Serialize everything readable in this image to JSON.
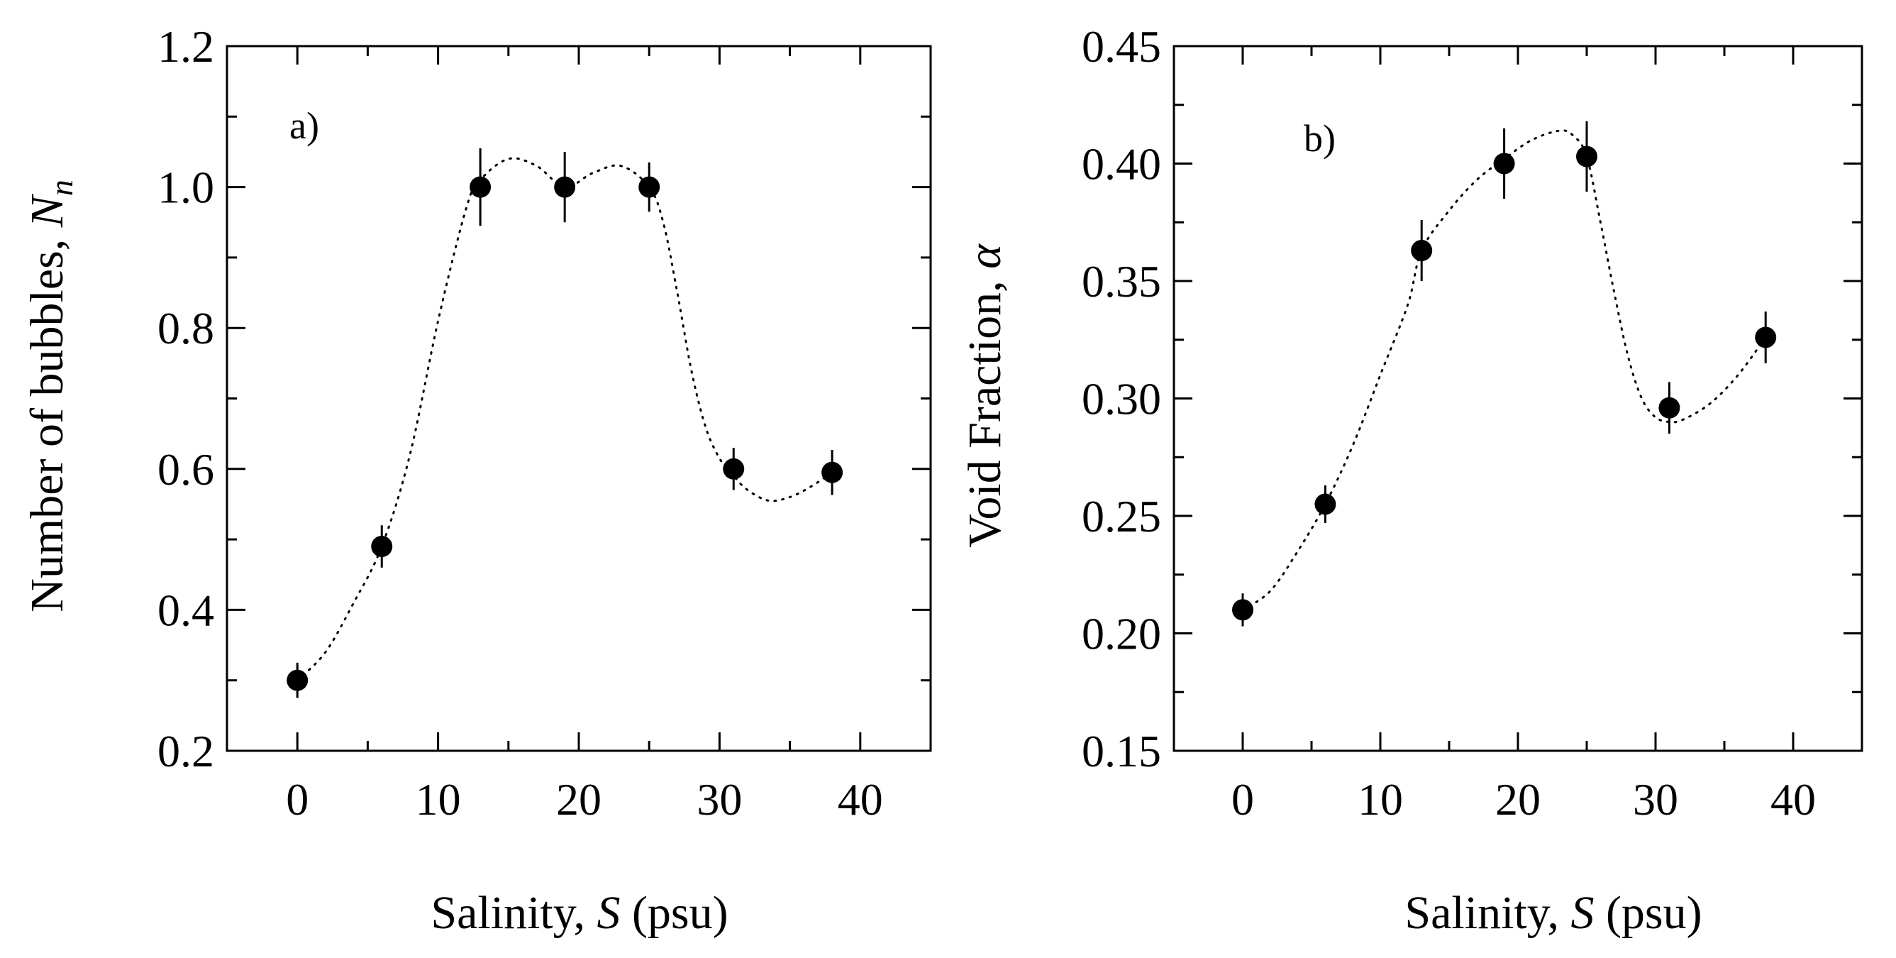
{
  "chart_data": [
    {
      "type": "scatter",
      "panel_label": "a)",
      "xlabel": {
        "prefix": "Salinity, ",
        "var": "S",
        "suffix": " (psu)"
      },
      "ylabel": {
        "prefix": "Number of bubbles, ",
        "var": "N",
        "sub": "n"
      },
      "xlim": [
        -5,
        45
      ],
      "ylim": [
        0.2,
        1.2
      ],
      "xticks": [
        0,
        10,
        20,
        30,
        40
      ],
      "xtick_labels": [
        "0",
        "10",
        "20",
        "30",
        "40"
      ],
      "yticks": [
        0.2,
        0.4,
        0.6,
        0.8,
        1.0,
        1.2
      ],
      "ytick_labels": [
        "0.2",
        "0.4",
        "0.6",
        "0.8",
        "1.0",
        "1.2"
      ],
      "x_minor_step": 5,
      "y_minor_step": 0.1,
      "series": [
        {
          "name": "Number of bubbles",
          "x": [
            0,
            6,
            13,
            19,
            25,
            31,
            38
          ],
          "y": [
            0.3,
            0.49,
            1.0,
            1.0,
            1.0,
            0.6,
            0.595
          ],
          "yerr": [
            0.025,
            0.03,
            0.055,
            0.05,
            0.035,
            0.03,
            0.032
          ]
        }
      ],
      "fit_curve": {
        "style": "dotted",
        "x": [
          0,
          2,
          4,
          6,
          8,
          10,
          12,
          13,
          15,
          17,
          19,
          21,
          23,
          25,
          26,
          27,
          28,
          29,
          30,
          31,
          32,
          33.5,
          35,
          36.5,
          38
        ],
        "y": [
          0.3,
          0.34,
          0.41,
          0.49,
          0.62,
          0.81,
          0.97,
          1.01,
          1.04,
          1.03,
          1.0,
          1.02,
          1.03,
          1.0,
          0.95,
          0.85,
          0.74,
          0.66,
          0.615,
          0.59,
          0.57,
          0.555,
          0.56,
          0.575,
          0.595
        ]
      }
    },
    {
      "type": "scatter",
      "panel_label": "b)",
      "xlabel": {
        "prefix": "Salinity, ",
        "var": "S",
        "suffix": " (psu)"
      },
      "ylabel": {
        "prefix": "Void Fraction, ",
        "var": "α",
        "sub": ""
      },
      "xlim": [
        -5,
        45
      ],
      "ylim": [
        0.15,
        0.45
      ],
      "xticks": [
        0,
        10,
        20,
        30,
        40
      ],
      "xtick_labels": [
        "0",
        "10",
        "20",
        "30",
        "40"
      ],
      "yticks": [
        0.15,
        0.2,
        0.25,
        0.3,
        0.35,
        0.4,
        0.45
      ],
      "ytick_labels": [
        "0.15",
        "0.20",
        "0.25",
        "0.30",
        "0.35",
        "0.40",
        "0.45"
      ],
      "x_minor_step": 5,
      "y_minor_step": 0.025,
      "series": [
        {
          "name": "Void fraction",
          "x": [
            0,
            6,
            13,
            19,
            25,
            31,
            38
          ],
          "y": [
            0.21,
            0.255,
            0.363,
            0.4,
            0.403,
            0.296,
            0.326
          ],
          "yerr": [
            0.007,
            0.008,
            0.013,
            0.015,
            0.015,
            0.011,
            0.011
          ]
        }
      ],
      "fit_curve": {
        "style": "dotted",
        "x": [
          0,
          2,
          4,
          6,
          8,
          10,
          12,
          13,
          15,
          17,
          19,
          21,
          23,
          24,
          25,
          26,
          27,
          28,
          29,
          30,
          31,
          32,
          34,
          36,
          38
        ],
        "y": [
          0.21,
          0.218,
          0.235,
          0.255,
          0.28,
          0.31,
          0.34,
          0.363,
          0.38,
          0.393,
          0.402,
          0.41,
          0.414,
          0.412,
          0.403,
          0.375,
          0.345,
          0.318,
          0.3,
          0.292,
          0.29,
          0.291,
          0.298,
          0.31,
          0.326
        ]
      }
    }
  ]
}
